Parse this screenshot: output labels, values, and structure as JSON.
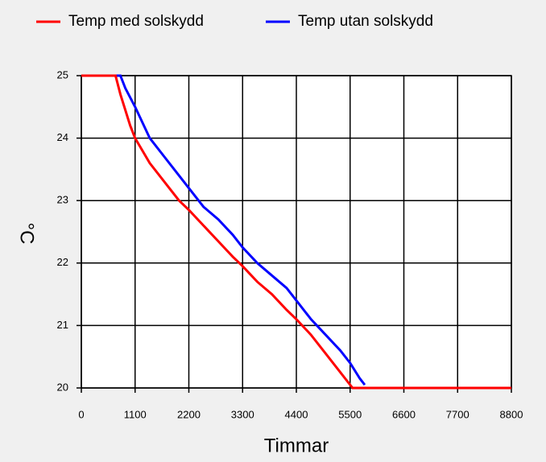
{
  "chart_data": {
    "type": "line",
    "xlabel": "Timmar",
    "ylabel": "°C",
    "xlim": [
      0,
      8800
    ],
    "xticks": [
      0,
      1100,
      2200,
      3300,
      4400,
      5500,
      6600,
      7700,
      8800
    ],
    "ylim": [
      20,
      25
    ],
    "yticks": [
      20,
      21,
      22,
      23,
      24,
      25
    ],
    "grid": true,
    "legend": "top",
    "series": [
      {
        "name": "Temp med solskydd",
        "color": "#ff0000",
        "x": [
          0,
          700,
          800,
          1000,
          1100,
          1400,
          1700,
          2000,
          2200,
          2500,
          2800,
          3100,
          3300,
          3600,
          3900,
          4200,
          4400,
          4700,
          5000,
          5300,
          5500,
          5550,
          8800
        ],
        "values": [
          25,
          25,
          24.7,
          24.2,
          24.0,
          23.6,
          23.3,
          23.0,
          22.85,
          22.6,
          22.35,
          22.1,
          21.95,
          21.7,
          21.5,
          21.25,
          21.1,
          20.85,
          20.55,
          20.25,
          20.05,
          20,
          20
        ]
      },
      {
        "name": "Temp utan solskydd",
        "color": "#0000ff",
        "x": [
          0,
          800,
          900,
          1100,
          1400,
          1700,
          2000,
          2200,
          2500,
          2800,
          3100,
          3300,
          3600,
          3900,
          4200,
          4400,
          4700,
          5000,
          5300,
          5500,
          5700,
          5800
        ],
        "values": [
          25,
          25,
          24.8,
          24.5,
          24.0,
          23.7,
          23.4,
          23.2,
          22.9,
          22.7,
          22.45,
          22.25,
          22.0,
          21.8,
          21.6,
          21.4,
          21.1,
          20.85,
          20.6,
          20.4,
          20.15,
          20.05
        ]
      }
    ]
  }
}
